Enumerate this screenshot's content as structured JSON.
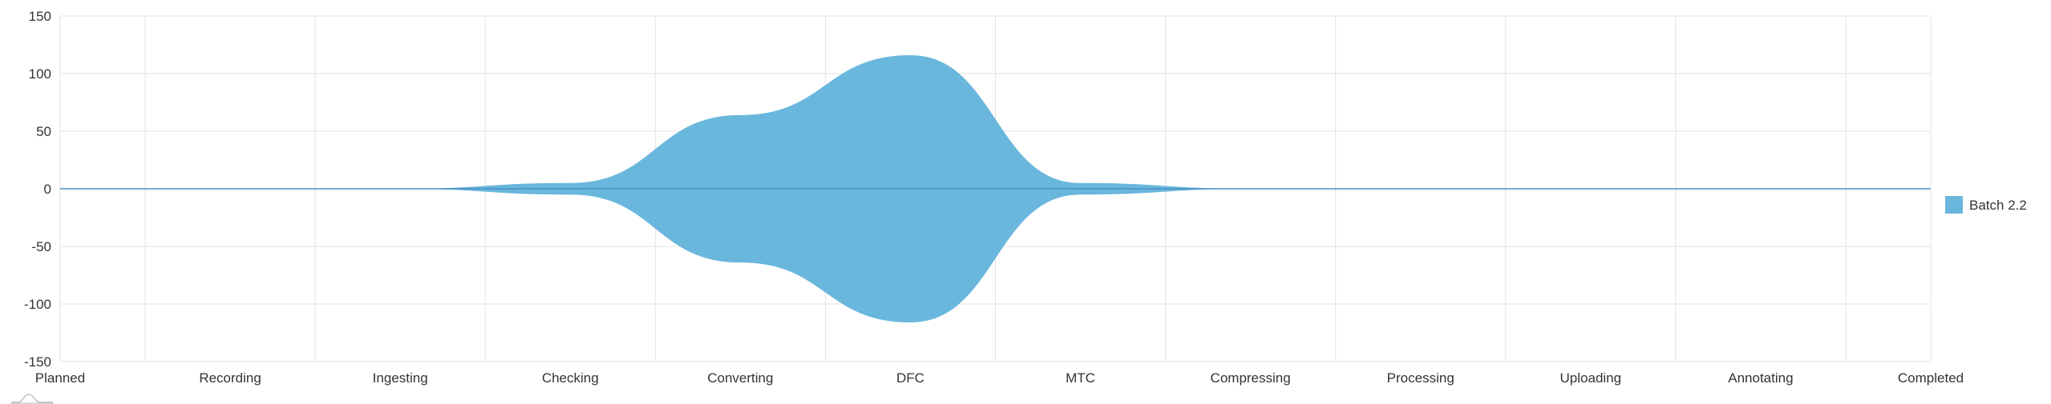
{
  "chart_data": {
    "type": "area",
    "subtype": "streamgraph",
    "categories": [
      "Planned",
      "Recording",
      "Ingesting",
      "Checking",
      "Converting",
      "DFC",
      "MTC",
      "Compressing",
      "Processing",
      "Uploading",
      "Annotating",
      "Completed"
    ],
    "series": [
      {
        "name": "Batch 2.2",
        "values": [
          0,
          0,
          0,
          10,
          128,
          232,
          10,
          0,
          0,
          0,
          0,
          0
        ],
        "color": "#6ab7dd"
      }
    ],
    "y_ticks": [
      "150",
      "100",
      "50",
      "0",
      "-50",
      "-100",
      "-150"
    ],
    "ylim": [
      -150,
      150
    ],
    "grid": true,
    "legend_position": "right"
  }
}
